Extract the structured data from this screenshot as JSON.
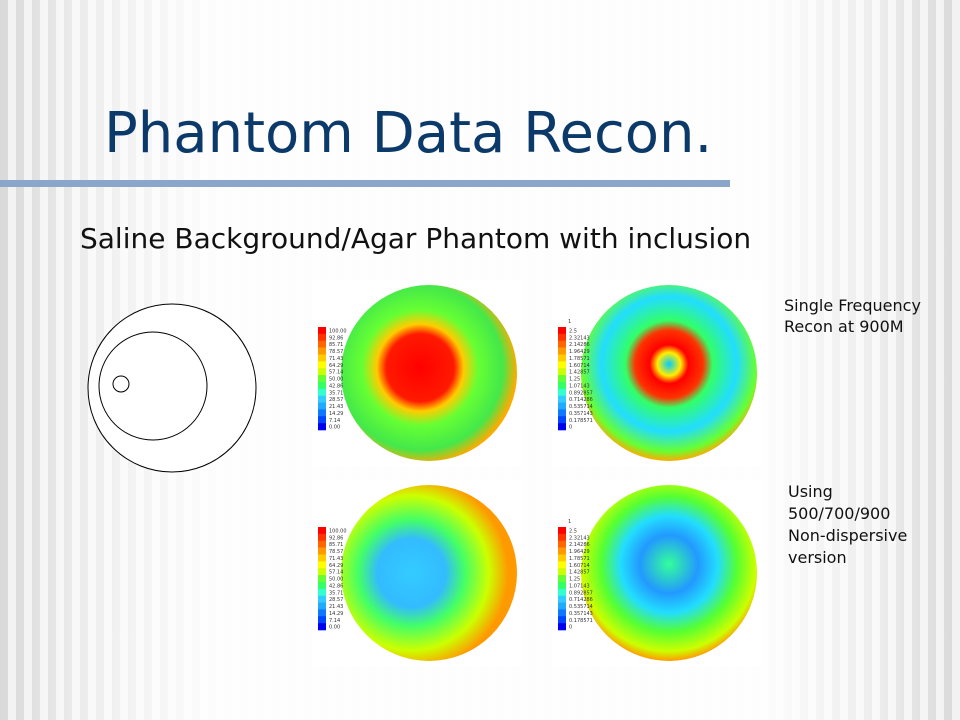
{
  "slide": {
    "title": "Phantom Data Recon.",
    "subtitle": "Saline Background/Agar Phantom with inclusion",
    "notes": [
      {
        "lines": [
          "Single Frequency",
          "Recon at 900M"
        ]
      },
      {
        "lines": [
          "Using",
          "500/700/900",
          "Non-dispersive",
          "version"
        ]
      }
    ],
    "colorbars": {
      "percent": {
        "labels": [
          "100.00",
          "92.86",
          "85.71",
          "78.57",
          "71.43",
          "64.29",
          "57.14",
          "50.00",
          "42.86",
          "35.71",
          "28.57",
          "21.43",
          "14.29",
          "7.14",
          "0.00"
        ]
      },
      "conductivity": {
        "unit": "1",
        "labels": [
          "2.5",
          "2.32143",
          "2.14286",
          "1.96429",
          "1.78571",
          "1.60714",
          "1.42857",
          "1.25",
          "1.07143",
          "0.892857",
          "0.714286",
          "0.535714",
          "0.357143",
          "0.178571",
          "0"
        ]
      }
    }
  }
}
